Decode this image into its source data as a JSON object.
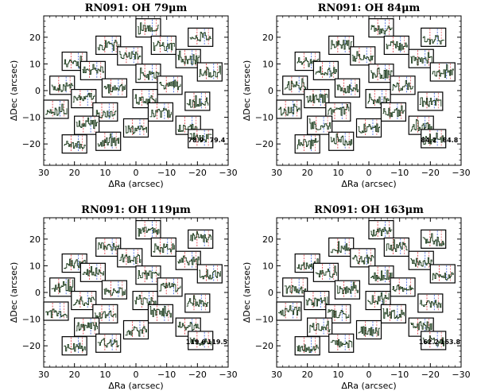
{
  "figure": {
    "panel_titles": [
      "RN091: OH 79μm",
      "RN091: OH 84μm",
      "RN091: OH 119μm",
      "RN091: OH 163μm"
    ]
  },
  "chart_data": [
    {
      "type": "scatter",
      "title": "RN091: OH 79μm",
      "xlabel": "ΔRa (arcsec)",
      "ylabel": "ΔDec (arcsec)",
      "xlim": [
        30,
        -30
      ],
      "ylim": [
        -28,
        28
      ],
      "xticks": [
        "30",
        "20",
        "10",
        "0",
        "−10",
        "−20",
        "−30"
      ],
      "yticks": [
        "−20",
        "−10",
        "0",
        "10",
        "20"
      ],
      "line_labels": [
        "78.9",
        "79.4"
      ],
      "spaxel_centers_arcsec": [
        [
          -4,
          23.5
        ],
        [
          -21,
          20
        ],
        [
          9,
          17
        ],
        [
          -9,
          17
        ],
        [
          20,
          11
        ],
        [
          2,
          13
        ],
        [
          -17,
          12
        ],
        [
          14,
          7.5
        ],
        [
          -4,
          6.5
        ],
        [
          -24,
          7
        ],
        [
          24,
          2
        ],
        [
          7,
          1
        ],
        [
          -11,
          2
        ],
        [
          17,
          -3
        ],
        [
          -3,
          -3
        ],
        [
          -20,
          -4
        ],
        [
          10,
          -8
        ],
        [
          -8,
          -8
        ],
        [
          26,
          -7
        ],
        [
          16,
          -13
        ],
        [
          0,
          -14
        ],
        [
          -17,
          -13
        ],
        [
          9,
          -19
        ],
        [
          -21,
          -18
        ],
        [
          20,
          -20
        ]
      ]
    },
    {
      "type": "scatter",
      "title": "RN091: OH 84μm",
      "xlabel": "ΔRa (arcsec)",
      "ylabel": "ΔDec (arcsec)",
      "xlim": [
        30,
        -30
      ],
      "ylim": [
        -28,
        28
      ],
      "xticks": [
        "30",
        "20",
        "10",
        "0",
        "−10",
        "−20",
        "−30"
      ],
      "yticks": [
        "−20",
        "−10",
        "0",
        "10",
        "20"
      ],
      "line_labels": [
        "84.2",
        "84.8"
      ],
      "spaxel_centers_arcsec": [
        [
          -4,
          23.5
        ],
        [
          -21,
          20
        ],
        [
          9,
          17
        ],
        [
          -9,
          17
        ],
        [
          20,
          11
        ],
        [
          2,
          13
        ],
        [
          -17,
          12
        ],
        [
          14,
          7.5
        ],
        [
          -4,
          6.5
        ],
        [
          -24,
          7
        ],
        [
          24,
          2
        ],
        [
          7,
          1
        ],
        [
          -11,
          2
        ],
        [
          17,
          -3
        ],
        [
          -3,
          -3
        ],
        [
          -20,
          -4
        ],
        [
          10,
          -8
        ],
        [
          -8,
          -8
        ],
        [
          26,
          -7
        ],
        [
          16,
          -13
        ],
        [
          0,
          -14
        ],
        [
          -17,
          -13
        ],
        [
          9,
          -19
        ],
        [
          -21,
          -18
        ],
        [
          20,
          -20
        ]
      ]
    },
    {
      "type": "scatter",
      "title": "RN091: OH 119μm",
      "xlabel": "ΔRa (arcsec)",
      "ylabel": "ΔDec (arcsec)",
      "xlim": [
        30,
        -30
      ],
      "ylim": [
        -28,
        28
      ],
      "xticks": [
        "30",
        "20",
        "10",
        "0",
        "−10",
        "−20",
        "−30"
      ],
      "yticks": [
        "−20",
        "−10",
        "0",
        "10",
        "20"
      ],
      "line_labels": [
        "119.0",
        "119.5"
      ],
      "spaxel_centers_arcsec": [
        [
          -4,
          23.5
        ],
        [
          -21,
          20
        ],
        [
          9,
          17
        ],
        [
          -9,
          17
        ],
        [
          20,
          11
        ],
        [
          2,
          13
        ],
        [
          -17,
          12
        ],
        [
          14,
          7.5
        ],
        [
          -4,
          6.5
        ],
        [
          -24,
          7
        ],
        [
          24,
          2
        ],
        [
          7,
          1
        ],
        [
          -11,
          2
        ],
        [
          17,
          -3
        ],
        [
          -3,
          -3
        ],
        [
          -20,
          -4
        ],
        [
          10,
          -8
        ],
        [
          -8,
          -8
        ],
        [
          26,
          -7
        ],
        [
          16,
          -13
        ],
        [
          0,
          -14
        ],
        [
          -17,
          -13
        ],
        [
          9,
          -19
        ],
        [
          -21,
          -18
        ],
        [
          20,
          -20
        ]
      ]
    },
    {
      "type": "scatter",
      "title": "RN091: OH 163μm",
      "xlabel": "ΔRa (arcsec)",
      "ylabel": "ΔDec (arcsec)",
      "xlim": [
        30,
        -30
      ],
      "ylim": [
        -28,
        28
      ],
      "xticks": [
        "30",
        "20",
        "10",
        "0",
        "−10",
        "−20",
        "−30"
      ],
      "yticks": [
        "−20",
        "−10",
        "0",
        "10",
        "20"
      ],
      "line_labels": [
        "162.2",
        "163.8"
      ],
      "spaxel_centers_arcsec": [
        [
          -4,
          23.5
        ],
        [
          -21,
          20
        ],
        [
          9,
          17
        ],
        [
          -9,
          17
        ],
        [
          20,
          11
        ],
        [
          2,
          13
        ],
        [
          -17,
          12
        ],
        [
          14,
          7.5
        ],
        [
          -4,
          6.5
        ],
        [
          -24,
          7
        ],
        [
          24,
          2
        ],
        [
          7,
          1
        ],
        [
          -11,
          2
        ],
        [
          17,
          -3
        ],
        [
          -3,
          -3
        ],
        [
          -20,
          -4
        ],
        [
          10,
          -8
        ],
        [
          -8,
          -8
        ],
        [
          26,
          -7
        ],
        [
          16,
          -13
        ],
        [
          0,
          -14
        ],
        [
          -17,
          -13
        ],
        [
          9,
          -19
        ],
        [
          -21,
          -18
        ],
        [
          20,
          -20
        ]
      ]
    }
  ],
  "colors": {
    "frame": "#000000",
    "spectrum": "#1a3a1a",
    "line_red": "#e0303a",
    "line_blue": "#3a5fe0"
  }
}
